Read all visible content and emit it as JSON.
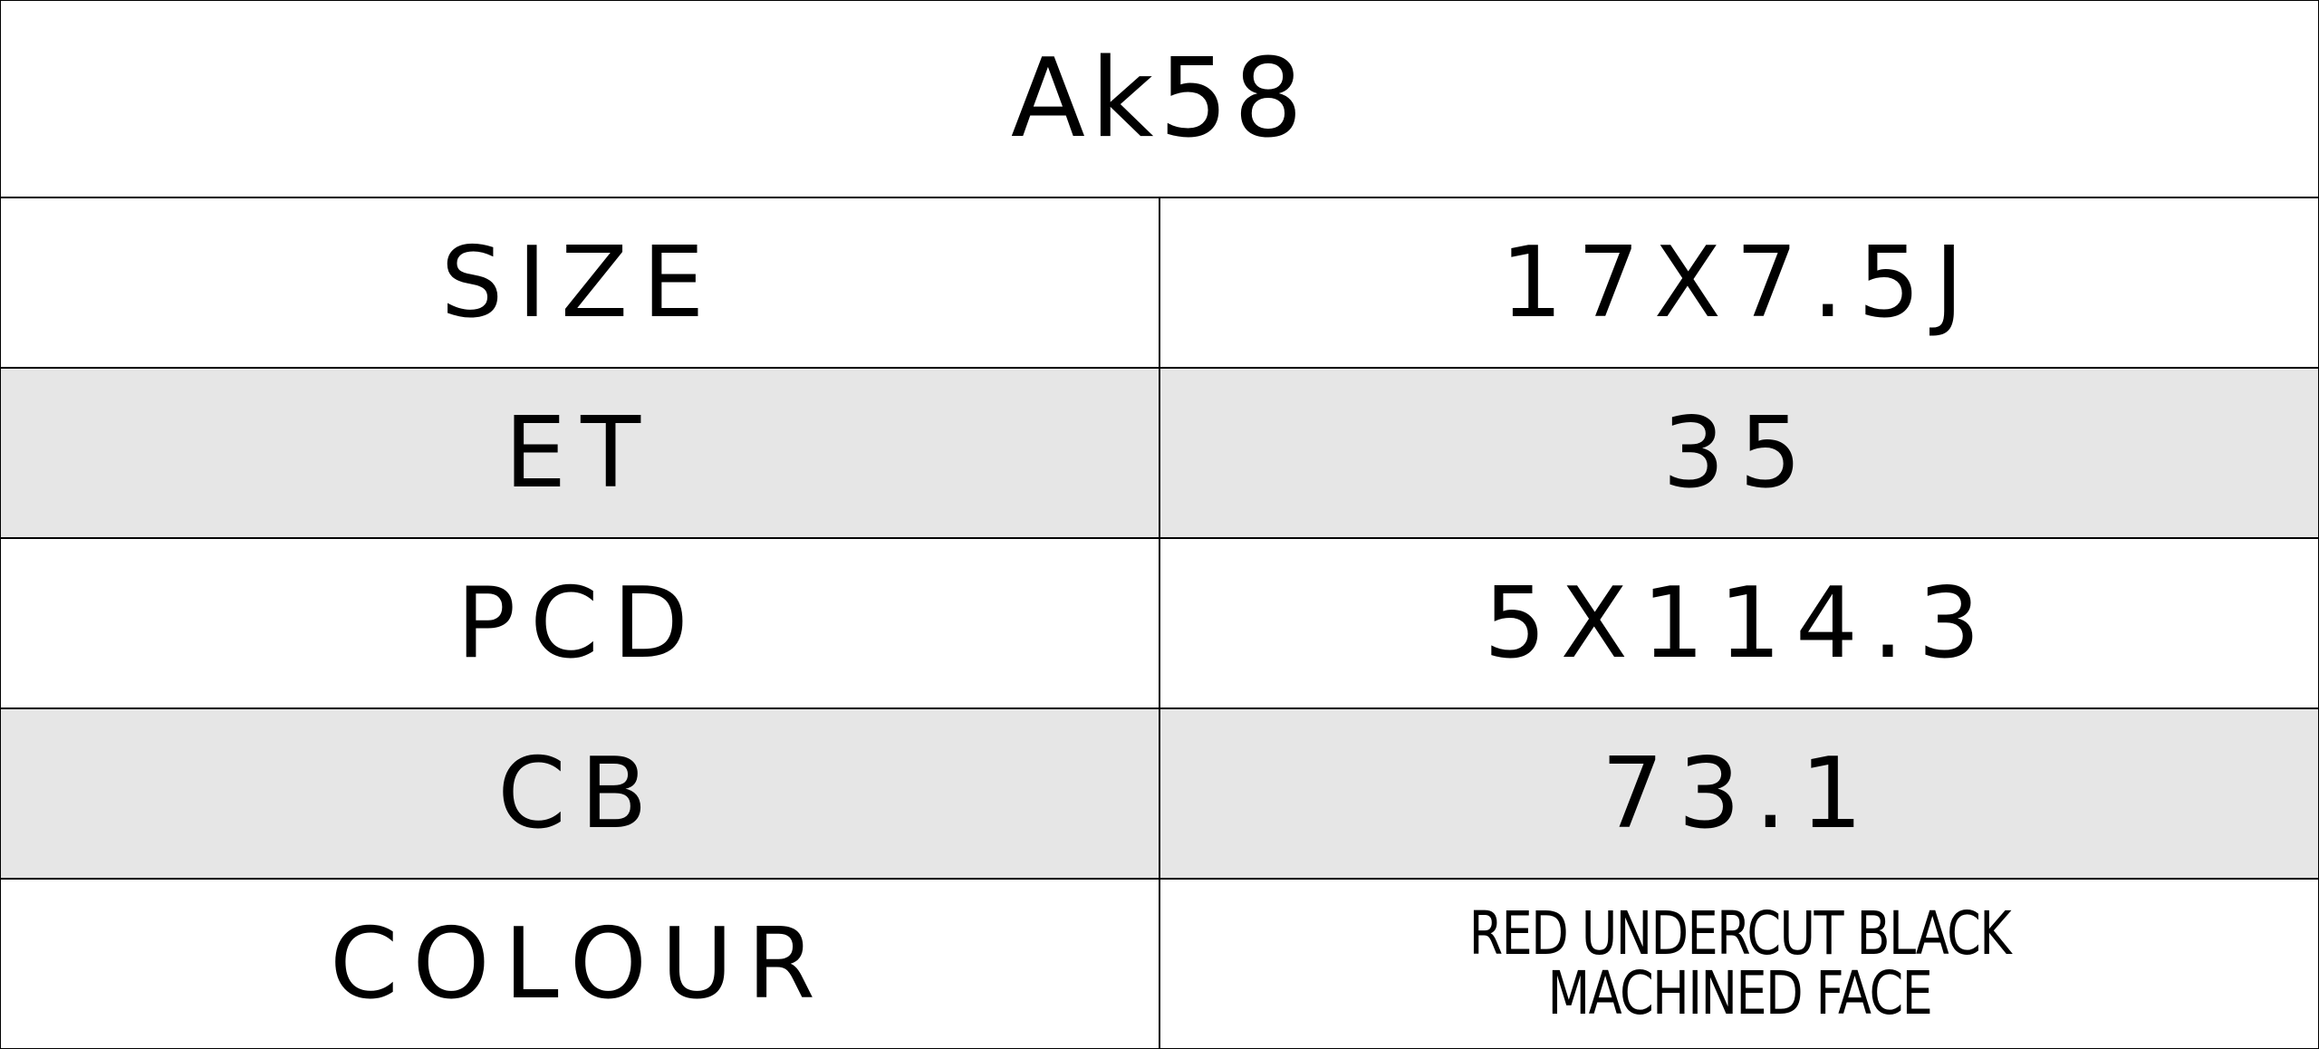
{
  "title": "Ak58",
  "rows": [
    {
      "label": "SIZE",
      "value": "17X7.5J",
      "shaded": false
    },
    {
      "label": "ET",
      "value": "35",
      "shaded": true
    },
    {
      "label": "PCD",
      "value": "5X114.3",
      "shaded": false
    },
    {
      "label": "CB",
      "value": "73.1",
      "shaded": true
    },
    {
      "label": "COLOUR",
      "value_lines": [
        "RED UNDERCUT BLACK",
        "MACHINED FACE"
      ],
      "shaded": false
    }
  ],
  "colors": {
    "shade": "#e6e6e6",
    "border": "#000000"
  }
}
